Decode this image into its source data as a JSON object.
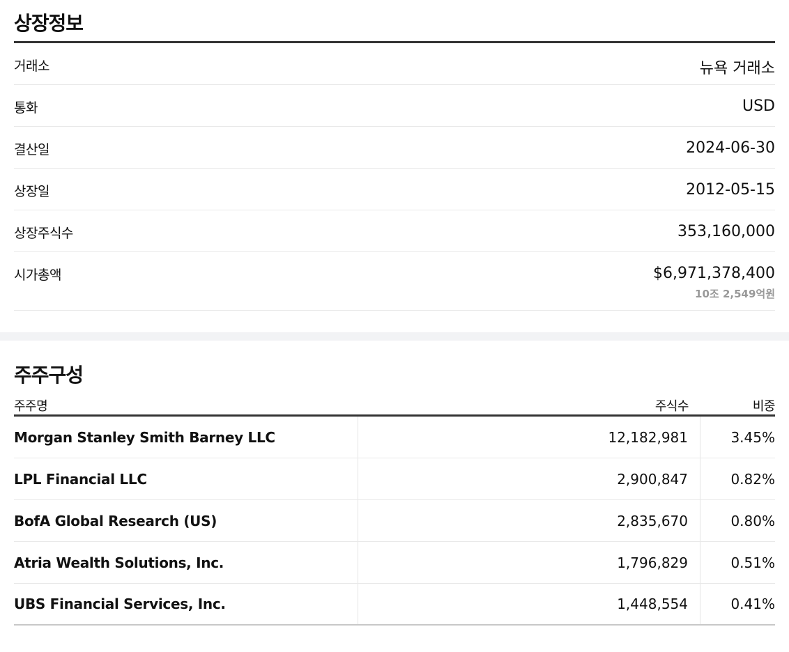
{
  "listing": {
    "title": "상장정보",
    "rows": [
      {
        "label": "거래소",
        "value": "뉴욕 거래소"
      },
      {
        "label": "통화",
        "value": "USD"
      },
      {
        "label": "결산일",
        "value": "2024-06-30"
      },
      {
        "label": "상장일",
        "value": "2012-05-15"
      },
      {
        "label": "상장주식수",
        "value": "353,160,000"
      },
      {
        "label": "시가총액",
        "value": "$6,971,378,400",
        "sub": "10조 2,549억원"
      }
    ]
  },
  "holders": {
    "title": "주주구성",
    "headers": {
      "name": "주주명",
      "shares": "주식수",
      "ratio": "비중"
    },
    "rows": [
      {
        "name": "Morgan Stanley Smith Barney LLC",
        "shares": "12,182,981",
        "ratio": "3.45%"
      },
      {
        "name": "LPL Financial LLC",
        "shares": "2,900,847",
        "ratio": "0.82%"
      },
      {
        "name": "BofA Global Research (US)",
        "shares": "2,835,670",
        "ratio": "0.80%"
      },
      {
        "name": "Atria Wealth Solutions, Inc.",
        "shares": "1,796,829",
        "ratio": "0.51%"
      },
      {
        "name": "UBS Financial Services, Inc.",
        "shares": "1,448,554",
        "ratio": "0.41%"
      }
    ]
  }
}
